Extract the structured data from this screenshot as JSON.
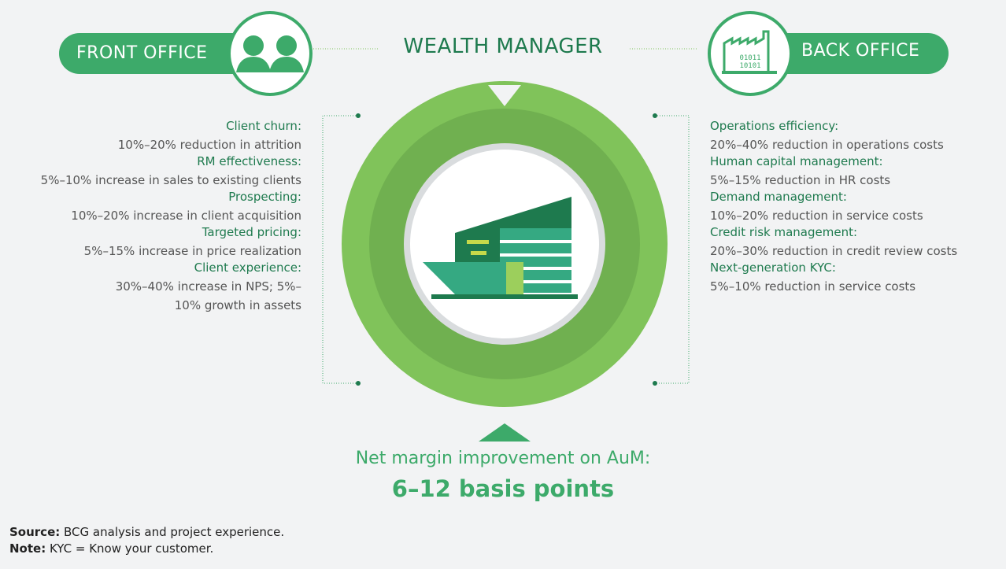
{
  "header": {
    "title": "WEALTH MANAGER"
  },
  "front_office": {
    "label": "FRONT OFFICE",
    "items": [
      {
        "title": "Client churn:",
        "detail": "10%–20% reduction in attrition"
      },
      {
        "title": "RM effectiveness:",
        "detail": "5%–10% increase in sales to existing clients"
      },
      {
        "title": "Prospecting:",
        "detail": "10%–20% increase in client acquisition"
      },
      {
        "title": "Targeted pricing:",
        "detail": "5%–15% increase in price realization"
      },
      {
        "title": "Client experience:",
        "detail": "30%–40% increase in NPS; 5%–10% growth in assets"
      }
    ]
  },
  "back_office": {
    "label": "BACK OFFICE",
    "items": [
      {
        "title": "Operations efficiency:",
        "detail": "20%–40% reduction in operations costs"
      },
      {
        "title": "Human capital management:",
        "detail": "5%–15% reduction in HR costs"
      },
      {
        "title": "Demand management:",
        "detail": "10%–20% reduction in service costs"
      },
      {
        "title": "Credit risk management:",
        "detail": "20%–30% reduction in credit review costs"
      },
      {
        "title": "Next-generation KYC:",
        "detail": "5%–10% reduction in service costs"
      }
    ]
  },
  "result": {
    "label": "Net margin improvement on AuM:",
    "value": "6–12 basis points"
  },
  "footer": {
    "source": {
      "label": "Source:",
      "text": "BCG analysis and project experience."
    },
    "note": {
      "label": "Note:",
      "text": "KYC = Know your customer."
    }
  }
}
